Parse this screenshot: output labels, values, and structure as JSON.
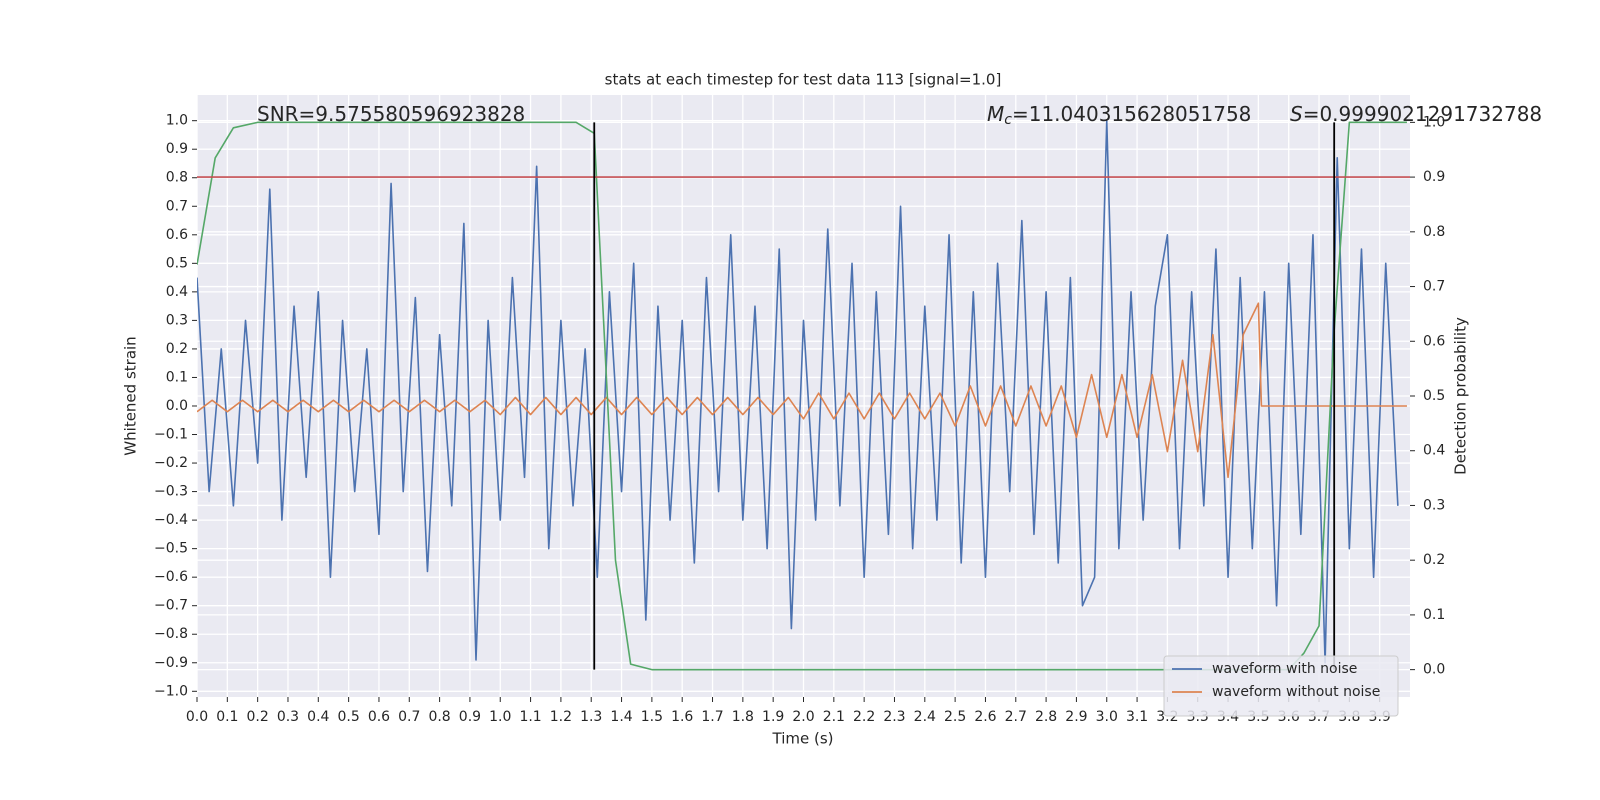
{
  "chart_data": {
    "type": "line",
    "title": "stats at each timestep for test data 113 [signal=1.0]",
    "xlabel": "Time (s)",
    "ylabel": "Whitened strain",
    "y2label": "Detection probability",
    "xlim": [
      0,
      4.0
    ],
    "ylim": [
      -1.02,
      1.09
    ],
    "y2lim": [
      -0.05,
      1.05
    ],
    "grid": true,
    "y2grid": true,
    "background": "#eaeaf2",
    "legend": "lower right",
    "xticks": [
      {
        "value": 0,
        "label": "0.0"
      },
      {
        "value": 0.1,
        "label": "0.1"
      },
      {
        "value": 0.2,
        "label": "0.2"
      },
      {
        "value": 0.3,
        "label": "0.3"
      },
      {
        "value": 0.4,
        "label": "0.4"
      },
      {
        "value": 0.5,
        "label": "0.5"
      },
      {
        "value": 0.6,
        "label": "0.6"
      },
      {
        "value": 0.7,
        "label": "0.7"
      },
      {
        "value": 0.8,
        "label": "0.8"
      },
      {
        "value": 0.9,
        "label": "0.9"
      },
      {
        "value": 1,
        "label": "1.0"
      },
      {
        "value": 1.1,
        "label": "1.1"
      },
      {
        "value": 1.2,
        "label": "1.2"
      },
      {
        "value": 1.3,
        "label": "1.3"
      },
      {
        "value": 1.4,
        "label": "1.4"
      },
      {
        "value": 1.5,
        "label": "1.5"
      },
      {
        "value": 1.6,
        "label": "1.6"
      },
      {
        "value": 1.7,
        "label": "1.7"
      },
      {
        "value": 1.8,
        "label": "1.8"
      },
      {
        "value": 1.9,
        "label": "1.9"
      },
      {
        "value": 2,
        "label": "2.0"
      },
      {
        "value": 2.1,
        "label": "2.1"
      },
      {
        "value": 2.2,
        "label": "2.2"
      },
      {
        "value": 2.3,
        "label": "2.3"
      },
      {
        "value": 2.4,
        "label": "2.4"
      },
      {
        "value": 2.5,
        "label": "2.5"
      },
      {
        "value": 2.6,
        "label": "2.6"
      },
      {
        "value": 2.7,
        "label": "2.7"
      },
      {
        "value": 2.8,
        "label": "2.8"
      },
      {
        "value": 2.9,
        "label": "2.9"
      },
      {
        "value": 3,
        "label": "3.0"
      },
      {
        "value": 3.1,
        "label": "3.1"
      },
      {
        "value": 3.2,
        "label": "3.2"
      },
      {
        "value": 3.3,
        "label": "3.3"
      },
      {
        "value": 3.4,
        "label": "3.4"
      },
      {
        "value": 3.5,
        "label": "3.5"
      },
      {
        "value": 3.6,
        "label": "3.6"
      },
      {
        "value": 3.7,
        "label": "3.7"
      },
      {
        "value": 3.8,
        "label": "3.8"
      },
      {
        "value": 3.9,
        "label": "3.9"
      }
    ],
    "yticks": [
      {
        "value": 1,
        "label": "1.0"
      },
      {
        "value": 0.9,
        "label": "0.9"
      },
      {
        "value": 0.8,
        "label": "0.8"
      },
      {
        "value": 0.7,
        "label": "0.7"
      },
      {
        "value": 0.6,
        "label": "0.6"
      },
      {
        "value": 0.5,
        "label": "0.5"
      },
      {
        "value": 0.4,
        "label": "0.4"
      },
      {
        "value": 0.3,
        "label": "0.3"
      },
      {
        "value": 0.2,
        "label": "0.2"
      },
      {
        "value": 0.1,
        "label": "0.1"
      },
      {
        "value": 0,
        "label": "0.0"
      },
      {
        "value": -0.1,
        "label": "−0.1"
      },
      {
        "value": -0.2,
        "label": "−0.2"
      },
      {
        "value": -0.3,
        "label": "−0.3"
      },
      {
        "value": -0.4,
        "label": "−0.4"
      },
      {
        "value": -0.5,
        "label": "−0.5"
      },
      {
        "value": -0.6,
        "label": "−0.6"
      },
      {
        "value": -0.7,
        "label": "−0.7"
      },
      {
        "value": -0.8,
        "label": "−0.8"
      },
      {
        "value": -0.9,
        "label": "−0.9"
      },
      {
        "value": -1,
        "label": "−1.0"
      }
    ],
    "y2ticks": [
      {
        "value": 0,
        "label": "0.0"
      },
      {
        "value": 0.1,
        "label": "0.1"
      },
      {
        "value": 0.2,
        "label": "0.2"
      },
      {
        "value": 0.3,
        "label": "0.3"
      },
      {
        "value": 0.4,
        "label": "0.4"
      },
      {
        "value": 0.5,
        "label": "0.5"
      },
      {
        "value": 0.6,
        "label": "0.6"
      },
      {
        "value": 0.7,
        "label": "0.7"
      },
      {
        "value": 0.8,
        "label": "0.8"
      },
      {
        "value": 0.9,
        "label": "0.9"
      },
      {
        "value": 1,
        "label": "1.0"
      }
    ],
    "series": [
      {
        "name": "waveform with noise",
        "color": "#4c72b0",
        "x": [
          0,
          0.04,
          0.08,
          0.12,
          0.16,
          0.2,
          0.24,
          0.28,
          0.32,
          0.36,
          0.4,
          0.44,
          0.48,
          0.52,
          0.56,
          0.6,
          0.64,
          0.68,
          0.72,
          0.76,
          0.8,
          0.84,
          0.88,
          0.92,
          0.96,
          1,
          1.04,
          1.08,
          1.12,
          1.16,
          1.2,
          1.24,
          1.28,
          1.32,
          1.36,
          1.4,
          1.44,
          1.48,
          1.52,
          1.56,
          1.6,
          1.64,
          1.68,
          1.72,
          1.76,
          1.8,
          1.84,
          1.88,
          1.92,
          1.96,
          2,
          2.04,
          2.08,
          2.12,
          2.16,
          2.2,
          2.24,
          2.28,
          2.32,
          2.36,
          2.4,
          2.44,
          2.48,
          2.52,
          2.56,
          2.6,
          2.64,
          2.68,
          2.72,
          2.76,
          2.8,
          2.84,
          2.88,
          2.92,
          2.96,
          3,
          3.04,
          3.08,
          3.12,
          3.16,
          3.2,
          3.24,
          3.28,
          3.32,
          3.36,
          3.4,
          3.44,
          3.48,
          3.52,
          3.56,
          3.6,
          3.64,
          3.68,
          3.72,
          3.76,
          3.8,
          3.84,
          3.88,
          3.92,
          3.96
        ],
        "values": [
          0.45,
          -0.3,
          0.2,
          -0.35,
          0.3,
          -0.2,
          0.76,
          -0.4,
          0.35,
          -0.25,
          0.4,
          -0.6,
          0.3,
          -0.3,
          0.2,
          -0.45,
          0.78,
          -0.3,
          0.38,
          -0.58,
          0.25,
          -0.35,
          0.64,
          -0.89,
          0.3,
          -0.4,
          0.45,
          -0.25,
          0.84,
          -0.5,
          0.3,
          -0.35,
          0.2,
          -0.6,
          0.4,
          -0.3,
          0.5,
          -0.75,
          0.35,
          -0.4,
          0.3,
          -0.55,
          0.45,
          -0.3,
          0.6,
          -0.4,
          0.35,
          -0.5,
          0.55,
          -0.78,
          0.3,
          -0.4,
          0.62,
          -0.35,
          0.5,
          -0.6,
          0.4,
          -0.45,
          0.7,
          -0.5,
          0.35,
          -0.4,
          0.6,
          -0.55,
          0.4,
          -0.6,
          0.5,
          -0.3,
          0.65,
          -0.45,
          0.4,
          -0.55,
          0.45,
          -0.7,
          -0.6,
          1.0,
          -0.5,
          0.4,
          -0.4,
          0.35,
          0.6,
          -0.5,
          0.4,
          -0.35,
          0.55,
          -0.6,
          0.45,
          -0.5,
          0.4,
          -0.7,
          0.5,
          -0.45,
          0.6,
          -0.9,
          0.87,
          -0.5,
          0.55,
          -0.6,
          0.5,
          -0.35
        ]
      },
      {
        "name": "waveform without noise",
        "color": "#dd8452",
        "x": [
          0,
          0.05,
          0.1,
          0.15,
          0.2,
          0.25,
          0.3,
          0.35,
          0.4,
          0.45,
          0.5,
          0.55,
          0.6,
          0.65,
          0.7,
          0.75,
          0.8,
          0.85,
          0.9,
          0.95,
          1,
          1.05,
          1.1,
          1.15,
          1.2,
          1.25,
          1.3,
          1.35,
          1.4,
          1.45,
          1.5,
          1.55,
          1.6,
          1.65,
          1.7,
          1.75,
          1.8,
          1.85,
          1.9,
          1.95,
          2,
          2.05,
          2.1,
          2.15,
          2.2,
          2.25,
          2.3,
          2.35,
          2.4,
          2.45,
          2.5,
          2.55,
          2.6,
          2.65,
          2.7,
          2.75,
          2.8,
          2.85,
          2.9,
          2.95,
          3,
          3.05,
          3.1,
          3.15,
          3.2,
          3.25,
          3.3,
          3.35,
          3.4,
          3.45,
          3.5,
          3.51,
          3.99
        ],
        "values": [
          -0.02,
          0.02,
          -0.02,
          0.02,
          -0.02,
          0.02,
          -0.02,
          0.02,
          -0.02,
          0.02,
          -0.02,
          0.02,
          -0.02,
          0.02,
          -0.02,
          0.02,
          -0.02,
          0.02,
          -0.02,
          0.02,
          -0.03,
          0.03,
          -0.03,
          0.03,
          -0.03,
          0.03,
          -0.03,
          0.03,
          -0.03,
          0.03,
          -0.03,
          0.03,
          -0.03,
          0.03,
          -0.03,
          0.03,
          -0.03,
          0.03,
          -0.03,
          0.03,
          -0.045,
          0.045,
          -0.045,
          0.045,
          -0.045,
          0.045,
          -0.045,
          0.045,
          -0.045,
          0.045,
          -0.07,
          0.07,
          -0.07,
          0.07,
          -0.07,
          0.07,
          -0.07,
          0.07,
          -0.11,
          0.11,
          -0.11,
          0.11,
          -0.11,
          0.11,
          -0.16,
          0.16,
          -0.16,
          0.25,
          -0.25,
          0.25,
          0.36,
          0.0,
          0.0
        ]
      },
      {
        "color": "#55a868",
        "axis": "y2",
        "x": [
          0,
          0.06,
          0.12,
          0.2,
          1.25,
          1.31,
          1.38,
          1.43,
          1.5,
          1.6,
          3.6,
          3.65,
          3.7,
          3.75,
          3.8,
          3.99
        ],
        "values": [
          0.74,
          0.935,
          0.99,
          1.0,
          1.0,
          0.98,
          0.2,
          0.01,
          0.0,
          0.0,
          0.0,
          0.03,
          0.08,
          0.62,
          1.0,
          1.0
        ]
      }
    ],
    "threshold": {
      "value": 0.9,
      "axis": "y2",
      "color": "#c44e52"
    },
    "vlines": {
      "x": [
        1.31,
        3.75
      ],
      "ymin": 0,
      "ymax": 1,
      "axis": "y2",
      "color": "#000000"
    },
    "annotations": [
      {
        "text": "SNR=9.575580596923828"
      },
      {
        "symbol": "M",
        "subscript": "c",
        "text": "=11.040315628051758"
      },
      {
        "symbol": "S",
        "text": "=0.9999021291732788"
      }
    ]
  }
}
